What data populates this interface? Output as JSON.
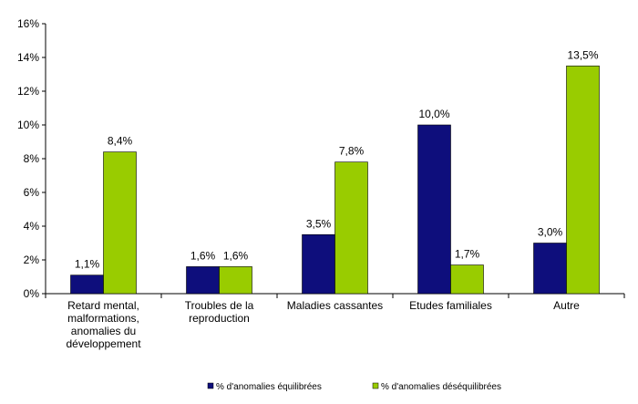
{
  "chart_data": {
    "type": "bar",
    "categories": [
      [
        "Retard mental,",
        "malformations,",
        "anomalies du",
        "développement"
      ],
      [
        "Troubles de la",
        "reproduction"
      ],
      [
        "Maladies cassantes"
      ],
      [
        "Etudes familiales"
      ],
      [
        "Autre"
      ]
    ],
    "series": [
      {
        "name": "% d'anomalies équilibrées",
        "color": "#0e0e7c",
        "values": [
          1.1,
          1.6,
          3.5,
          10.0,
          3.0
        ],
        "labels": [
          "1,1%",
          "1,6%",
          "3,5%",
          "10,0%",
          "3,0%"
        ]
      },
      {
        "name": "% d'anomalies déséquilibrées",
        "color": "#99cc00",
        "values": [
          8.4,
          1.6,
          7.8,
          1.7,
          13.5
        ],
        "labels": [
          "8,4%",
          "1,6%",
          "7,8%",
          "1,7%",
          "13,5%"
        ]
      }
    ],
    "ylim": [
      0,
      16
    ],
    "yticks": [
      "0%",
      "2%",
      "4%",
      "6%",
      "8%",
      "10%",
      "12%",
      "14%",
      "16%"
    ],
    "grid": false,
    "legend": "bottom"
  }
}
